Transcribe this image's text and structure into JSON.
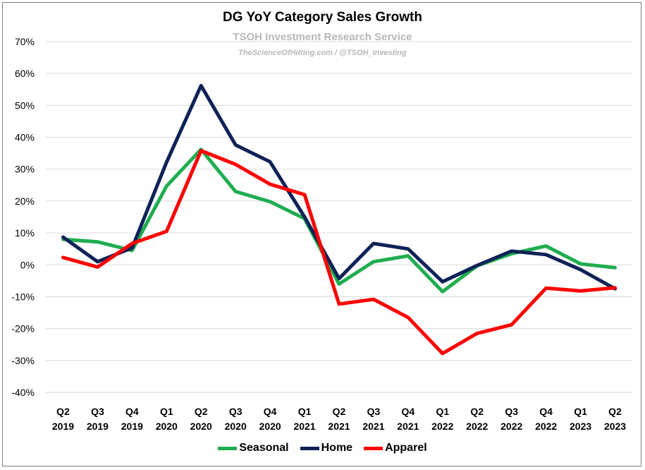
{
  "chart_data": {
    "type": "line",
    "title": "DG YoY Category Sales Growth",
    "subtitle": "TSOH Investment Research Service",
    "subtitle2": "TheScienceOfHitting.com / @TSOH_Investing",
    "categories": [
      [
        "Q2",
        "2019"
      ],
      [
        "Q3",
        "2019"
      ],
      [
        "Q4",
        "2019"
      ],
      [
        "Q1",
        "2020"
      ],
      [
        "Q2",
        "2020"
      ],
      [
        "Q3",
        "2020"
      ],
      [
        "Q4",
        "2020"
      ],
      [
        "Q1",
        "2021"
      ],
      [
        "Q2",
        "2021"
      ],
      [
        "Q3",
        "2021"
      ],
      [
        "Q4",
        "2021"
      ],
      [
        "Q1",
        "2022"
      ],
      [
        "Q2",
        "2022"
      ],
      [
        "Q3",
        "2022"
      ],
      [
        "Q4",
        "2022"
      ],
      [
        "Q1",
        "2023"
      ],
      [
        "Q2",
        "2023"
      ]
    ],
    "series": [
      {
        "name": "Seasonal",
        "color": "#1fad4f",
        "values": [
          8.0,
          7.2,
          4.5,
          24.7,
          36.2,
          23.0,
          19.8,
          14.5,
          -6.0,
          1.0,
          2.8,
          -8.4,
          -0.3,
          3.5,
          5.9,
          0.3,
          -0.9
        ]
      },
      {
        "name": "Home",
        "color": "#0e2258",
        "values": [
          8.7,
          1.0,
          5.3,
          32.2,
          56.2,
          37.6,
          32.3,
          15.0,
          -4.3,
          6.7,
          5.0,
          -5.3,
          -0.2,
          4.3,
          3.2,
          -1.5,
          -7.5
        ]
      },
      {
        "name": "Apparel",
        "color": "#ff0000",
        "values": [
          2.3,
          -0.7,
          6.7,
          10.5,
          35.8,
          31.5,
          25.3,
          22.0,
          -12.3,
          -10.8,
          -16.5,
          -27.8,
          -21.5,
          -18.8,
          -7.3,
          -8.2,
          -7.2
        ]
      }
    ],
    "ylim": [
      -40,
      70
    ],
    "yticks": [
      -40,
      -30,
      -20,
      -10,
      0,
      10,
      20,
      30,
      40,
      50,
      60,
      70
    ],
    "ytick_suffix": "%",
    "grid": true,
    "legend_position": "bottom"
  }
}
